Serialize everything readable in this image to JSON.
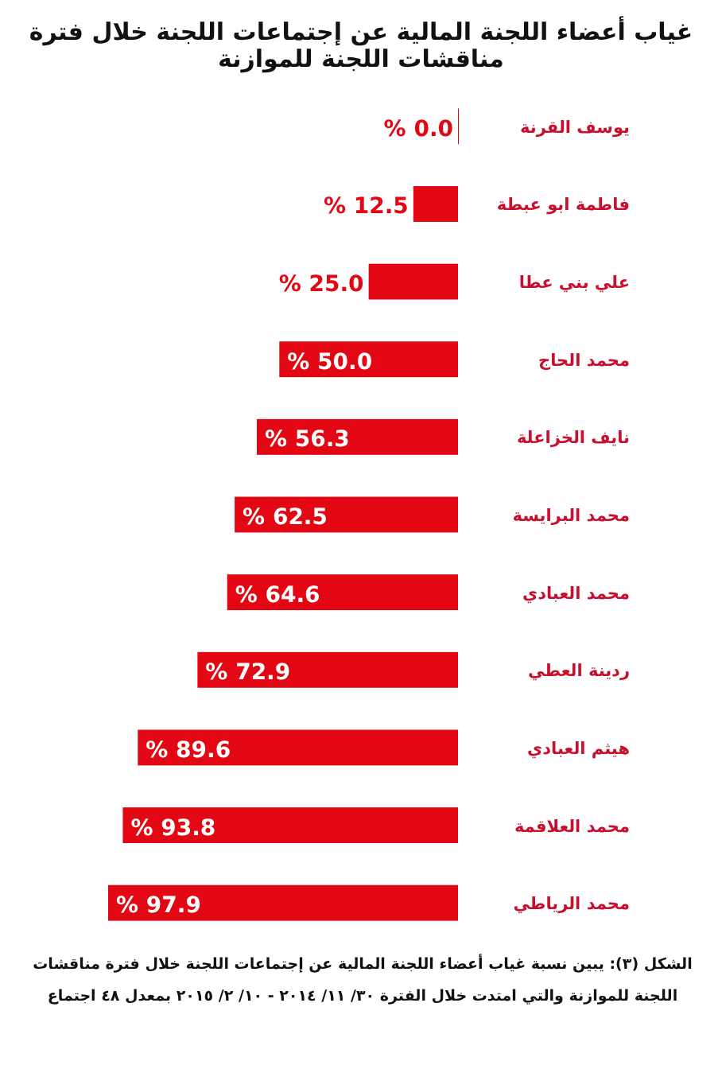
{
  "chart_data": {
    "type": "bar",
    "orientation": "horizontal",
    "title": "غياب أعضاء اللجنة المالية عن إجتماعات اللجنة خلال فترة مناقشات اللجنة  للموازنة",
    "categories": [
      "يوسف القرنة",
      "فاطمة ابو عبطة",
      "علي بني عطا",
      "محمد الحاج",
      "نايف الخزاعلة",
      "محمد البرايسة",
      "محمد العبادي",
      "ردينة العطي",
      "هيثم العبادي",
      "محمد العلاقمة",
      "محمد الرياطي"
    ],
    "values": [
      0.0,
      12.5,
      25.0,
      50.0,
      56.3,
      62.5,
      64.6,
      72.9,
      89.6,
      93.8,
      97.9
    ],
    "value_labels": [
      "% 0.0",
      "% 12.5",
      "% 25.0",
      "% 50.0",
      "% 56.3",
      "% 62.5",
      "% 64.6",
      "% 72.9",
      "% 89.6",
      "% 93.8",
      "% 97.9"
    ],
    "color": "#e30613",
    "annotations": [
      "الشكل (٣): يبين نسبة غياب أعضاء اللجنة المالية عن إجتماعات اللجنة خلال فترة مناقشات اللجنة  للموازنة والتي امتدت خلال الفترة ٣٠/ ١١/ ٢٠١٤ - ١٠/ ٢/ ٢٠١٥ بمعدل ٤٨ اجتماع"
    ]
  }
}
